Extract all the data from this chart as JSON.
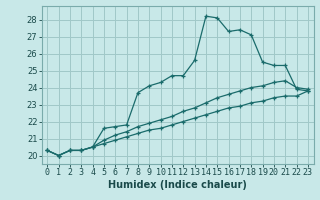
{
  "xlabel": "Humidex (Indice chaleur)",
  "xlim": [
    -0.5,
    23.5
  ],
  "ylim": [
    19.5,
    28.8
  ],
  "yticks": [
    20,
    21,
    22,
    23,
    24,
    25,
    26,
    27,
    28
  ],
  "xticks": [
    0,
    1,
    2,
    3,
    4,
    5,
    6,
    7,
    8,
    9,
    10,
    11,
    12,
    13,
    14,
    15,
    16,
    17,
    18,
    19,
    20,
    21,
    22,
    23
  ],
  "background_color": "#c8e8e8",
  "grid_color": "#a0c8c8",
  "line_color": "#1a6b6b",
  "line1_y": [
    20.3,
    20.0,
    20.3,
    20.3,
    20.5,
    21.6,
    21.7,
    21.8,
    23.7,
    24.1,
    24.3,
    24.7,
    24.7,
    25.6,
    28.2,
    28.1,
    27.3,
    27.4,
    27.1,
    25.5,
    25.3,
    25.3,
    23.9,
    23.8
  ],
  "line2_y": [
    20.3,
    20.0,
    20.3,
    20.3,
    20.5,
    20.9,
    21.2,
    21.4,
    21.7,
    21.9,
    22.1,
    22.3,
    22.6,
    22.8,
    23.1,
    23.4,
    23.6,
    23.8,
    24.0,
    24.1,
    24.3,
    24.4,
    24.0,
    23.9
  ],
  "line3_y": [
    20.3,
    20.0,
    20.3,
    20.3,
    20.5,
    20.7,
    20.9,
    21.1,
    21.3,
    21.5,
    21.6,
    21.8,
    22.0,
    22.2,
    22.4,
    22.6,
    22.8,
    22.9,
    23.1,
    23.2,
    23.4,
    23.5,
    23.5,
    23.8
  ],
  "tick_fontsize": 6,
  "xlabel_fontsize": 7
}
